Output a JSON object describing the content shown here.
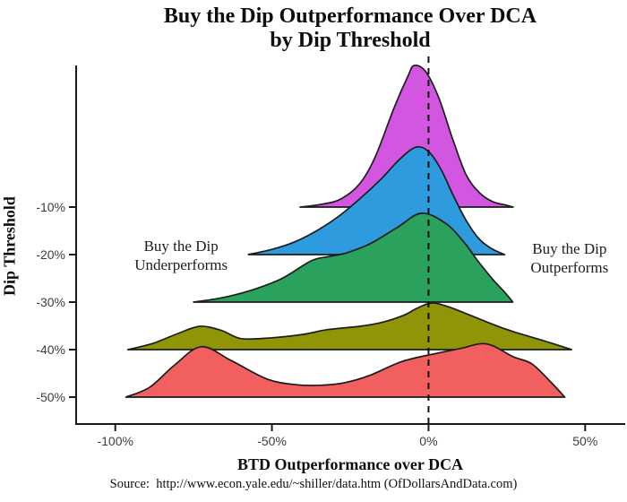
{
  "title": {
    "line1": "Buy the Dip Outperformance Over DCA",
    "line2": "by Dip Threshold"
  },
  "axes": {
    "y_title": "Dip Threshold",
    "x_title": "BTD Outperformance over DCA"
  },
  "source": "Source:  http://www.econ.yale.edu/~shiller/data.htm (OfDollarsAndData.com)",
  "colors": {
    "ridge_neg10": "#d356e0",
    "ridge_neg20": "#2e9bdf",
    "ridge_neg30": "#2aa15d",
    "ridge_neg40": "#909407",
    "ridge_neg50": "#f25f5f",
    "outline": "#1c1c1c",
    "axis": "#1a1a1a",
    "tick_text": "#3d3d3d",
    "reference_line": "#111111"
  },
  "chart_data": {
    "type": "area",
    "variant": "ridgeline",
    "title": "Buy the Dip Outperformance Over DCA by Dip Threshold",
    "xlabel": "BTD Outperformance over DCA",
    "ylabel": "Dip Threshold",
    "xlim": [
      -112.5,
      62.5
    ],
    "x_unit": "percent",
    "grid": "off",
    "legend": "none",
    "reference_line_x": 0,
    "x_ticks": [
      {
        "value": -100,
        "label": "-100%"
      },
      {
        "value": -50,
        "label": "-50%"
      },
      {
        "value": 0,
        "label": "0%"
      },
      {
        "value": 50,
        "label": "50%"
      }
    ],
    "rows": [
      {
        "label": "-10%",
        "name": "ridge-minus-10pct",
        "fill": "#d356e0",
        "points": [
          [
            -41,
            0
          ],
          [
            -34,
            0.06
          ],
          [
            -28,
            0.17
          ],
          [
            -22,
            0.49
          ],
          [
            -17,
            1.06
          ],
          [
            -11,
            2.09
          ],
          [
            -6.6,
            2.75
          ],
          [
            -4.6,
            2.98
          ],
          [
            -0.9,
            2.85
          ],
          [
            3.4,
            2.28
          ],
          [
            7.7,
            1.43
          ],
          [
            12,
            0.68
          ],
          [
            16.3,
            0.3
          ],
          [
            20.6,
            0.11
          ],
          [
            24.9,
            0.04
          ],
          [
            27,
            0
          ]
        ]
      },
      {
        "label": "-20%",
        "name": "ridge-minus-20pct",
        "fill": "#2e9bdf",
        "points": [
          [
            -57.5,
            0
          ],
          [
            -50,
            0.11
          ],
          [
            -43,
            0.26
          ],
          [
            -36,
            0.49
          ],
          [
            -29,
            0.79
          ],
          [
            -22,
            1.17
          ],
          [
            -15,
            1.6
          ],
          [
            -9,
            2.02
          ],
          [
            -4,
            2.26
          ],
          [
            0,
            2.17
          ],
          [
            4,
            1.79
          ],
          [
            8,
            1.23
          ],
          [
            12,
            0.72
          ],
          [
            16,
            0.34
          ],
          [
            20,
            0.13
          ],
          [
            24.3,
            0
          ]
        ]
      },
      {
        "label": "-30%",
        "name": "ridge-minus-30pct",
        "fill": "#2aa15d",
        "points": [
          [
            -75,
            0
          ],
          [
            -66,
            0.09
          ],
          [
            -56.6,
            0.25
          ],
          [
            -47,
            0.49
          ],
          [
            -37.4,
            0.87
          ],
          [
            -31.7,
            0.96
          ],
          [
            -26,
            1.04
          ],
          [
            -18.6,
            1.23
          ],
          [
            -10,
            1.57
          ],
          [
            -2.3,
            1.87
          ],
          [
            5.4,
            1.66
          ],
          [
            11.1,
            1.28
          ],
          [
            15.7,
            0.87
          ],
          [
            20.6,
            0.47
          ],
          [
            24.3,
            0.21
          ],
          [
            26.9,
            0
          ]
        ]
      },
      {
        "label": "-40%",
        "name": "ridge-minus-40pct",
        "fill": "#909407",
        "points": [
          [
            -96,
            0
          ],
          [
            -88,
            0.13
          ],
          [
            -80,
            0.34
          ],
          [
            -72.9,
            0.49
          ],
          [
            -66,
            0.4
          ],
          [
            -59.7,
            0.23
          ],
          [
            -50,
            0.25
          ],
          [
            -40,
            0.32
          ],
          [
            -32.3,
            0.42
          ],
          [
            -22,
            0.49
          ],
          [
            -15.1,
            0.57
          ],
          [
            -8,
            0.72
          ],
          [
            -3.7,
            0.87
          ],
          [
            0.9,
            0.98
          ],
          [
            6,
            0.91
          ],
          [
            13.4,
            0.72
          ],
          [
            25.1,
            0.42
          ],
          [
            36.6,
            0.19
          ],
          [
            45.7,
            0
          ]
        ]
      },
      {
        "label": "-50%",
        "name": "ridge-minus-50pct",
        "fill": "#f25f5f",
        "points": [
          [
            -96.6,
            0
          ],
          [
            -89,
            0.21
          ],
          [
            -81,
            0.68
          ],
          [
            -72.5,
            1.06
          ],
          [
            -63,
            0.77
          ],
          [
            -51.5,
            0.38
          ],
          [
            -42,
            0.26
          ],
          [
            -34.5,
            0.25
          ],
          [
            -27,
            0.3
          ],
          [
            -19,
            0.45
          ],
          [
            -8.5,
            0.75
          ],
          [
            2.5,
            0.92
          ],
          [
            10,
            1.02
          ],
          [
            18.5,
            1.12
          ],
          [
            27,
            0.85
          ],
          [
            33,
            0.7
          ],
          [
            39,
            0.32
          ],
          [
            43.5,
            0
          ]
        ]
      }
    ],
    "annotations": [
      {
        "name": "annotation-underperforms",
        "lines": [
          "Buy the Dip",
          "Underperforms"
        ],
        "x": -79,
        "y_baselines": [
          280,
          301
        ]
      },
      {
        "name": "annotation-outperforms",
        "lines": [
          "Buy the Dip",
          "Outperforms"
        ],
        "x": 45,
        "y_baselines": [
          283,
          304
        ]
      }
    ]
  }
}
